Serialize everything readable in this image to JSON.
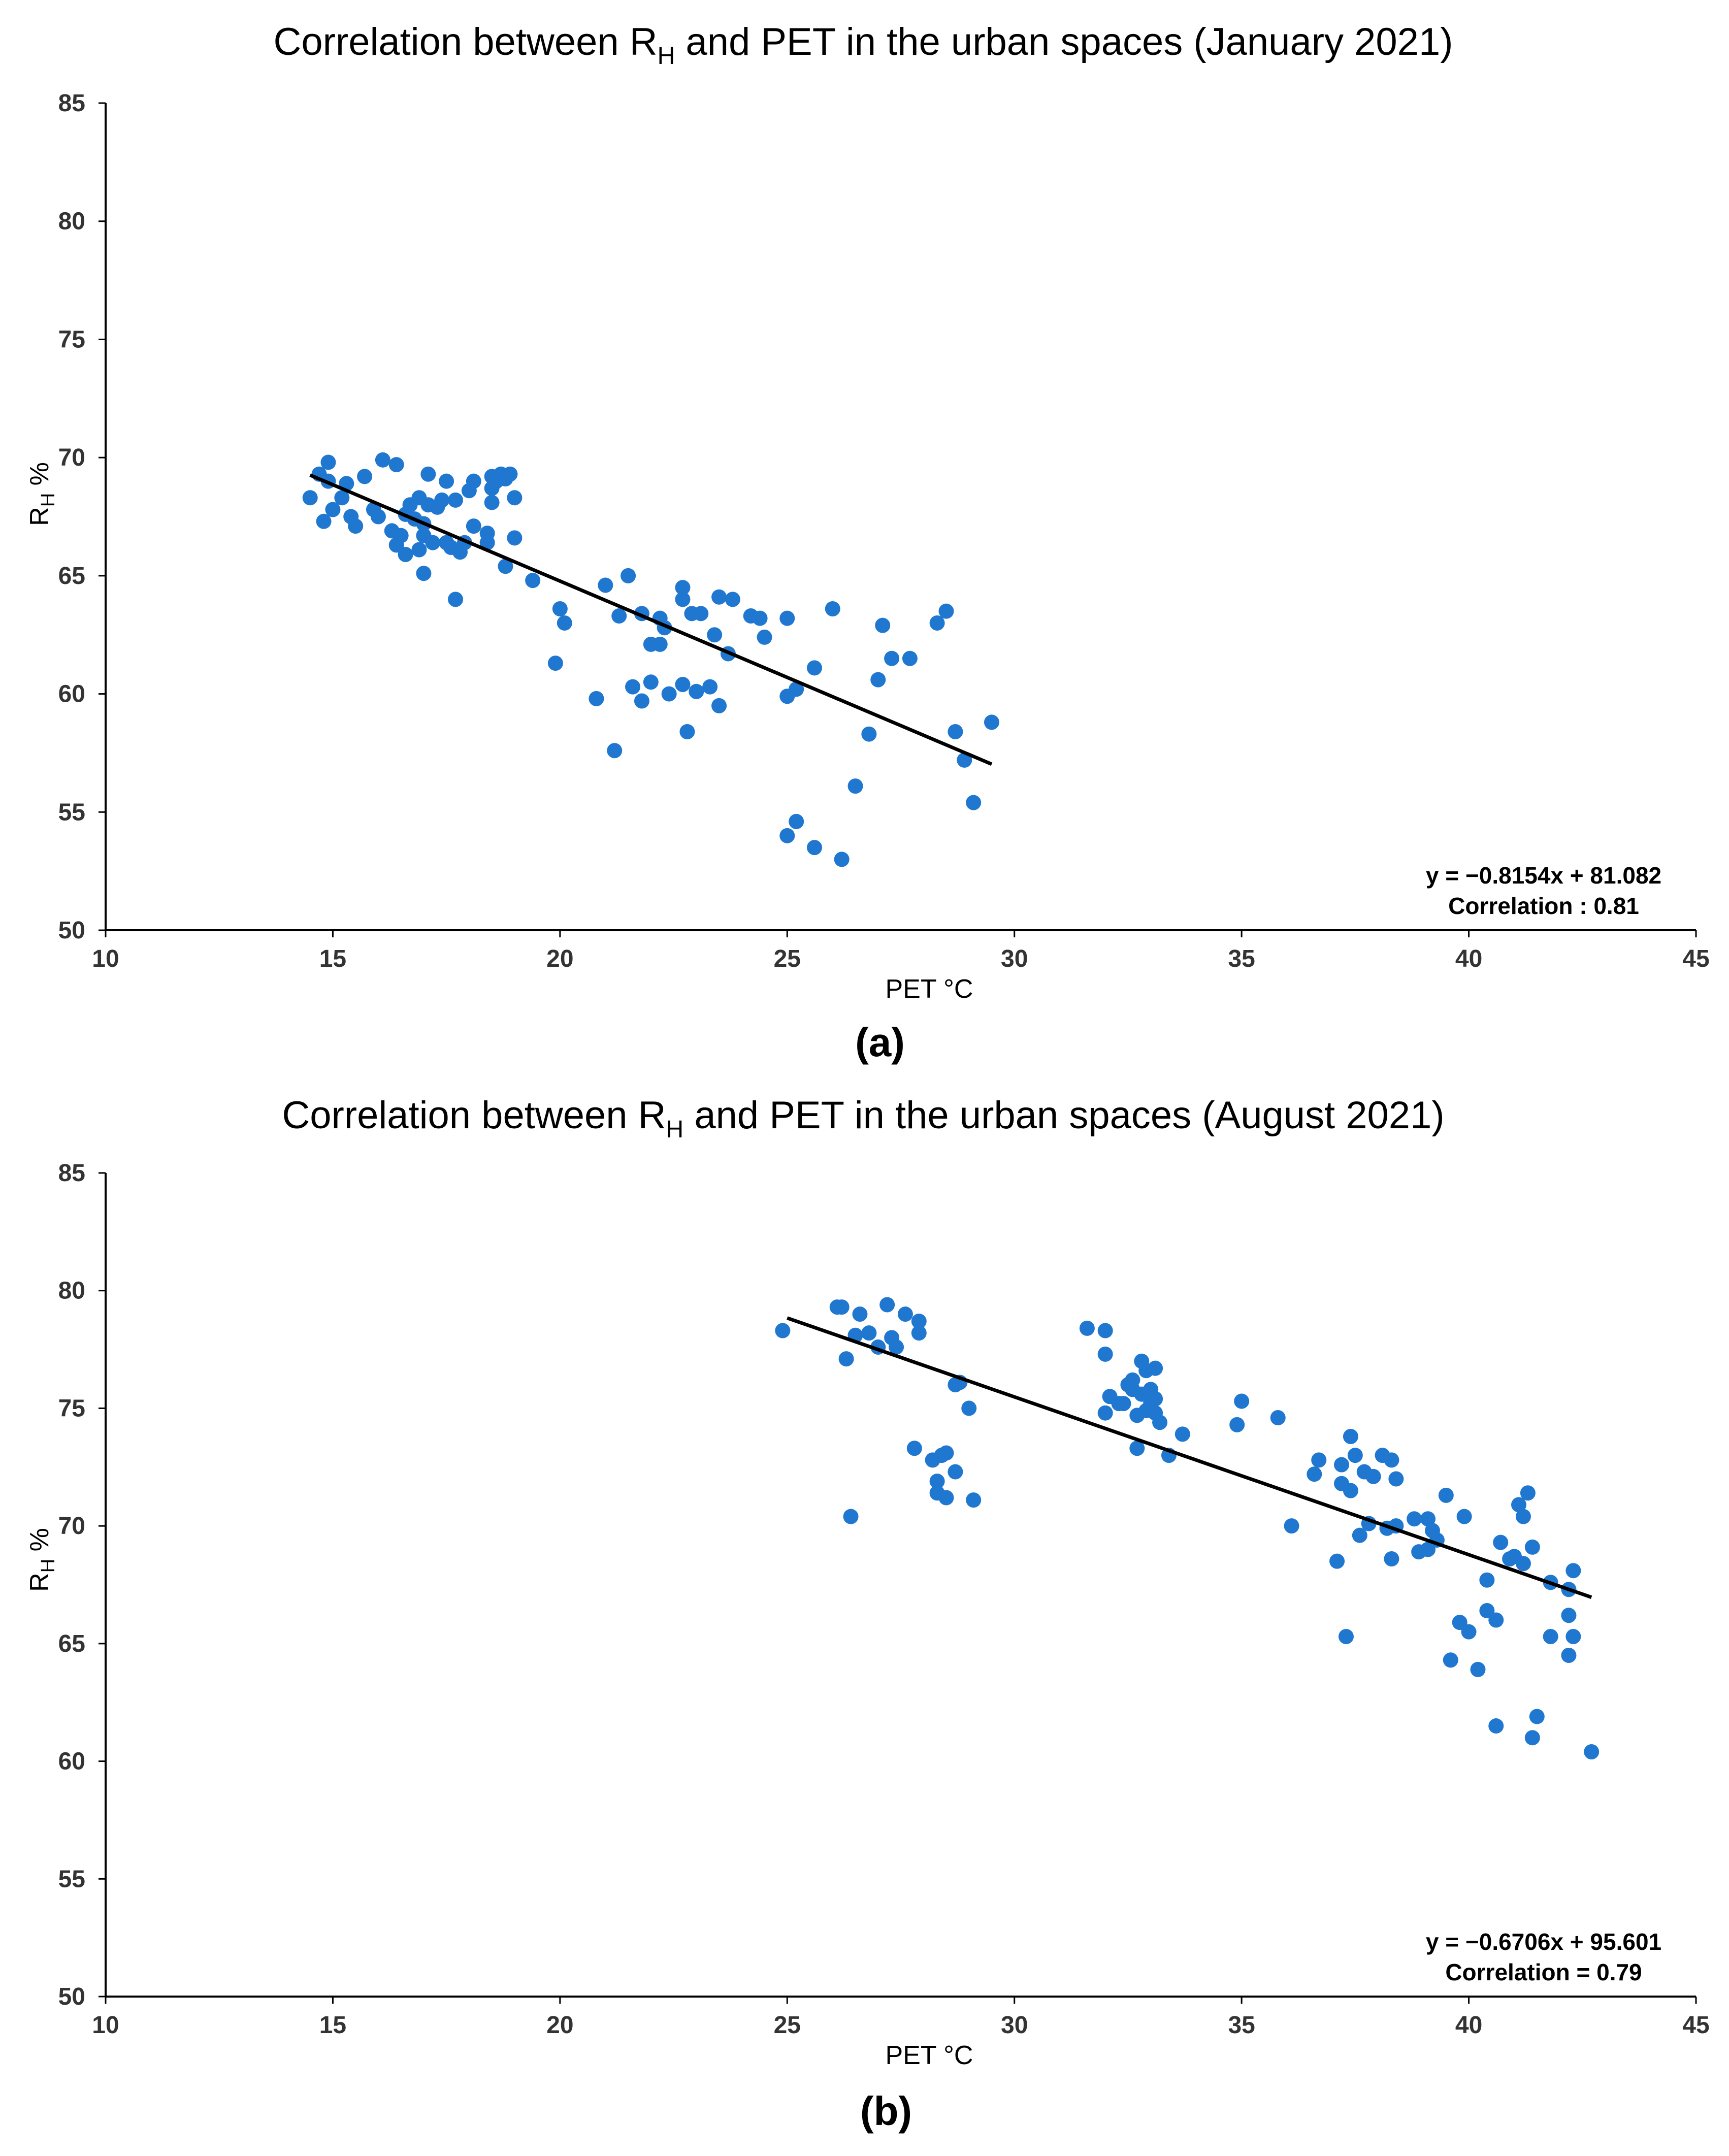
{
  "colors": {
    "points": "#1f77d0",
    "trendline": "#000000",
    "axis": "#000000"
  },
  "chart_data": [
    {
      "type": "scatter",
      "title_pre": "Correlation between R",
      "title_sub": "H",
      "title_post": " and PET in the urban spaces (January 2021)",
      "panel_label": "(a)",
      "xlabel": "PET °C",
      "ylabel_main": "R",
      "ylabel_sub": "H",
      "ylabel_post": " %",
      "xlim": [
        10,
        45
      ],
      "ylim": [
        50,
        85
      ],
      "xticks": [
        "10",
        "15",
        "20",
        "25",
        "30",
        "35",
        "40",
        "45"
      ],
      "yticks": [
        "50",
        "55",
        "60",
        "65",
        "70",
        "75",
        "80",
        "85"
      ],
      "trendline": {
        "slope": -0.8154,
        "intercept": 81.082,
        "x_range": [
          14.5,
          29.5
        ]
      },
      "equation_label": "y = −0.8154x + 81.082",
      "correlation_label": "Correlation : 0.81",
      "points": [
        [
          14.5,
          68.3
        ],
        [
          14.7,
          69.3
        ],
        [
          14.8,
          67.3
        ],
        [
          14.9,
          69.8
        ],
        [
          14.9,
          69.0
        ],
        [
          15.0,
          67.8
        ],
        [
          15.2,
          68.3
        ],
        [
          15.3,
          68.9
        ],
        [
          15.4,
          67.5
        ],
        [
          15.5,
          67.1
        ],
        [
          15.7,
          69.2
        ],
        [
          15.9,
          67.8
        ],
        [
          16.0,
          67.5
        ],
        [
          16.1,
          69.9
        ],
        [
          16.3,
          66.9
        ],
        [
          16.4,
          66.3
        ],
        [
          16.5,
          66.7
        ],
        [
          16.4,
          69.7
        ],
        [
          16.6,
          67.6
        ],
        [
          16.6,
          65.9
        ],
        [
          16.7,
          68.0
        ],
        [
          16.8,
          67.4
        ],
        [
          16.9,
          66.1
        ],
        [
          16.9,
          68.3
        ],
        [
          17.0,
          67.2
        ],
        [
          17.0,
          66.7
        ],
        [
          17.1,
          68.0
        ],
        [
          17.1,
          69.3
        ],
        [
          17.2,
          66.4
        ],
        [
          17.3,
          67.9
        ],
        [
          17.0,
          65.1
        ],
        [
          17.4,
          68.2
        ],
        [
          17.5,
          66.4
        ],
        [
          17.5,
          69.0
        ],
        [
          17.6,
          66.2
        ],
        [
          17.7,
          68.2
        ],
        [
          17.8,
          66.0
        ],
        [
          17.9,
          66.4
        ],
        [
          17.7,
          64.0
        ],
        [
          18.0,
          68.6
        ],
        [
          18.1,
          69.0
        ],
        [
          18.1,
          67.1
        ],
        [
          18.4,
          66.8
        ],
        [
          18.4,
          66.4
        ],
        [
          18.5,
          68.1
        ],
        [
          18.5,
          69.2
        ],
        [
          18.5,
          68.7
        ],
        [
          18.6,
          69.0
        ],
        [
          18.7,
          69.3
        ],
        [
          18.8,
          69.1
        ],
        [
          18.9,
          69.3
        ],
        [
          18.8,
          65.4
        ],
        [
          19.0,
          68.3
        ],
        [
          19.0,
          66.6
        ],
        [
          19.4,
          64.8
        ],
        [
          19.9,
          61.3
        ],
        [
          20.0,
          63.6
        ],
        [
          20.1,
          63.0
        ],
        [
          20.8,
          59.8
        ],
        [
          21.0,
          64.6
        ],
        [
          21.2,
          57.6
        ],
        [
          21.3,
          63.3
        ],
        [
          21.5,
          65.0
        ],
        [
          21.6,
          60.3
        ],
        [
          21.8,
          59.7
        ],
        [
          21.8,
          63.4
        ],
        [
          22.0,
          60.5
        ],
        [
          22.0,
          62.1
        ],
        [
          22.2,
          63.2
        ],
        [
          22.2,
          62.1
        ],
        [
          22.3,
          62.8
        ],
        [
          22.4,
          60.0
        ],
        [
          22.7,
          64.5
        ],
        [
          22.7,
          64.0
        ],
        [
          22.7,
          60.4
        ],
        [
          22.8,
          58.4
        ],
        [
          22.9,
          63.4
        ],
        [
          23.0,
          60.1
        ],
        [
          23.1,
          63.4
        ],
        [
          23.3,
          60.3
        ],
        [
          23.4,
          62.5
        ],
        [
          23.5,
          64.1
        ],
        [
          23.5,
          59.5
        ],
        [
          23.7,
          61.7
        ],
        [
          23.8,
          64.0
        ],
        [
          24.2,
          63.3
        ],
        [
          24.4,
          63.2
        ],
        [
          24.5,
          62.4
        ],
        [
          25.0,
          63.2
        ],
        [
          25.0,
          59.9
        ],
        [
          25.2,
          60.2
        ],
        [
          25.0,
          54.0
        ],
        [
          25.2,
          54.6
        ],
        [
          25.6,
          61.1
        ],
        [
          25.6,
          53.5
        ],
        [
          26.0,
          63.6
        ],
        [
          26.2,
          53.0
        ],
        [
          26.5,
          56.1
        ],
        [
          26.8,
          58.3
        ],
        [
          27.0,
          60.6
        ],
        [
          27.1,
          62.9
        ],
        [
          27.3,
          61.5
        ],
        [
          27.7,
          61.5
        ],
        [
          28.3,
          63.0
        ],
        [
          28.5,
          63.5
        ],
        [
          28.7,
          58.4
        ],
        [
          28.9,
          57.2
        ],
        [
          29.1,
          55.4
        ],
        [
          29.5,
          58.8
        ]
      ]
    },
    {
      "type": "scatter",
      "title_pre": "Correlation between R",
      "title_sub": "H",
      "title_post": " and PET in the urban spaces (August 2021)",
      "panel_label": "(b)",
      "xlabel": "PET °C",
      "ylabel_main": "R",
      "ylabel_sub": "H",
      "ylabel_post": " %",
      "xlim": [
        10,
        45
      ],
      "ylim": [
        50,
        85
      ],
      "xticks": [
        "10",
        "15",
        "20",
        "25",
        "30",
        "35",
        "40",
        "45"
      ],
      "yticks": [
        "50",
        "55",
        "60",
        "65",
        "70",
        "75",
        "80",
        "85"
      ],
      "trendline": {
        "slope": -0.6706,
        "intercept": 95.601,
        "x_range": [
          25.0,
          42.7
        ]
      },
      "equation_label": "y = −0.6706x + 95.601",
      "correlation_label": "Correlation = 0.79",
      "points": [
        [
          24.9,
          78.3
        ],
        [
          26.1,
          79.3
        ],
        [
          26.2,
          79.3
        ],
        [
          26.3,
          77.1
        ],
        [
          26.4,
          70.4
        ],
        [
          26.5,
          78.1
        ],
        [
          26.6,
          79.0
        ],
        [
          26.8,
          78.2
        ],
        [
          27.0,
          77.6
        ],
        [
          27.2,
          79.4
        ],
        [
          27.3,
          78.0
        ],
        [
          27.4,
          77.6
        ],
        [
          27.6,
          79.0
        ],
        [
          27.8,
          73.3
        ],
        [
          27.9,
          78.7
        ],
        [
          27.9,
          78.2
        ],
        [
          28.2,
          72.8
        ],
        [
          28.3,
          71.4
        ],
        [
          28.3,
          71.9
        ],
        [
          28.4,
          73.0
        ],
        [
          28.5,
          73.1
        ],
        [
          28.5,
          71.2
        ],
        [
          28.7,
          76.0
        ],
        [
          28.7,
          72.3
        ],
        [
          28.8,
          76.1
        ],
        [
          29.0,
          75.0
        ],
        [
          29.1,
          71.1
        ],
        [
          31.6,
          78.4
        ],
        [
          32.0,
          78.3
        ],
        [
          32.0,
          77.3
        ],
        [
          32.0,
          74.8
        ],
        [
          32.1,
          75.5
        ],
        [
          32.3,
          75.2
        ],
        [
          32.4,
          75.2
        ],
        [
          32.5,
          76.0
        ],
        [
          32.6,
          76.2
        ],
        [
          32.6,
          75.8
        ],
        [
          32.7,
          73.3
        ],
        [
          32.7,
          74.7
        ],
        [
          32.8,
          77.0
        ],
        [
          32.8,
          75.6
        ],
        [
          32.9,
          76.6
        ],
        [
          32.9,
          74.9
        ],
        [
          33.0,
          75.8
        ],
        [
          33.0,
          75.2
        ],
        [
          33.1,
          76.7
        ],
        [
          33.1,
          74.8
        ],
        [
          33.1,
          75.4
        ],
        [
          33.2,
          74.4
        ],
        [
          33.4,
          73.0
        ],
        [
          33.7,
          73.9
        ],
        [
          34.9,
          74.3
        ],
        [
          35.0,
          75.3
        ],
        [
          35.8,
          74.6
        ],
        [
          36.1,
          70.0
        ],
        [
          36.6,
          72.2
        ],
        [
          36.7,
          72.8
        ],
        [
          37.1,
          68.5
        ],
        [
          37.2,
          72.6
        ],
        [
          37.2,
          71.8
        ],
        [
          37.3,
          65.3
        ],
        [
          37.4,
          73.8
        ],
        [
          37.4,
          71.5
        ],
        [
          37.5,
          73.0
        ],
        [
          37.6,
          69.6
        ],
        [
          37.7,
          72.3
        ],
        [
          37.8,
          70.1
        ],
        [
          37.9,
          72.1
        ],
        [
          38.1,
          73.0
        ],
        [
          38.2,
          69.9
        ],
        [
          38.3,
          72.8
        ],
        [
          38.3,
          68.6
        ],
        [
          38.4,
          72.0
        ],
        [
          38.4,
          70.0
        ],
        [
          38.8,
          70.3
        ],
        [
          38.9,
          68.9
        ],
        [
          39.1,
          70.3
        ],
        [
          39.1,
          69.0
        ],
        [
          39.2,
          69.8
        ],
        [
          39.3,
          69.4
        ],
        [
          39.5,
          71.3
        ],
        [
          39.6,
          64.3
        ],
        [
          39.8,
          65.9
        ],
        [
          39.9,
          70.4
        ],
        [
          40.0,
          65.5
        ],
        [
          40.2,
          63.9
        ],
        [
          40.4,
          67.7
        ],
        [
          40.4,
          66.4
        ],
        [
          40.6,
          66.0
        ],
        [
          40.6,
          61.5
        ],
        [
          40.7,
          69.3
        ],
        [
          40.9,
          68.6
        ],
        [
          41.0,
          68.7
        ],
        [
          41.1,
          70.9
        ],
        [
          41.2,
          70.4
        ],
        [
          41.2,
          68.4
        ],
        [
          41.3,
          71.4
        ],
        [
          41.4,
          69.1
        ],
        [
          41.4,
          61.0
        ],
        [
          41.5,
          61.9
        ],
        [
          41.8,
          67.6
        ],
        [
          41.8,
          65.3
        ],
        [
          42.2,
          67.3
        ],
        [
          42.2,
          66.2
        ],
        [
          42.2,
          64.5
        ],
        [
          42.3,
          68.1
        ],
        [
          42.3,
          65.3
        ],
        [
          42.7,
          60.4
        ]
      ]
    }
  ]
}
